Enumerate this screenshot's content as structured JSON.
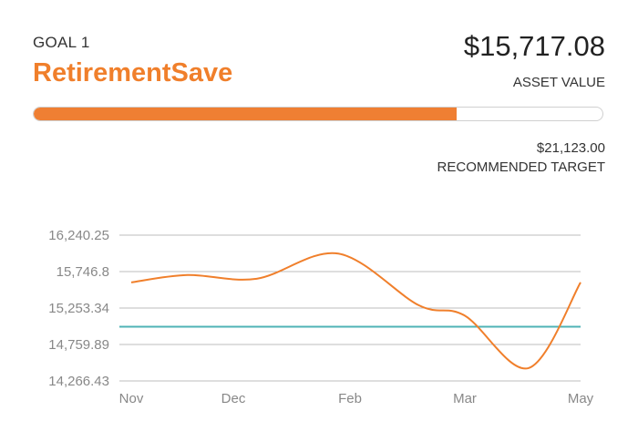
{
  "goal": {
    "label": "GOAL 1",
    "name": "RetirementSave",
    "asset_value": "$15,717.08",
    "asset_value_label": "ASSET VALUE",
    "target_value": "$21,123.00",
    "target_label": "RECOMMENDED TARGET",
    "progress_fraction": 0.744
  },
  "colors": {
    "accent": "#f07f2b",
    "target_line": "#4fb3b6",
    "grid": "#bdbdbd"
  },
  "chart_data": {
    "type": "line",
    "categories": [
      "Nov",
      "Dec",
      "Feb",
      "Mar",
      "May"
    ],
    "yticks": [
      "16,240.25",
      "15,746.8",
      "15,253.34",
      "14,759.89",
      "14,266.43"
    ],
    "ylim": [
      14266.43,
      16240.25
    ],
    "x": [
      0,
      0.5,
      1,
      1.5,
      2,
      2.5,
      3,
      3.5,
      4,
      4.5,
      5
    ],
    "series": [
      {
        "values": [
          15600,
          15700,
          15650,
          15990,
          15290,
          15150,
          14440,
          15600
        ],
        "x": [
          0,
          0.55,
          1.2,
          1.9,
          2.6,
          3.0,
          3.55,
          4.0
        ]
      }
    ],
    "reference_line": 15000,
    "grid": true
  }
}
